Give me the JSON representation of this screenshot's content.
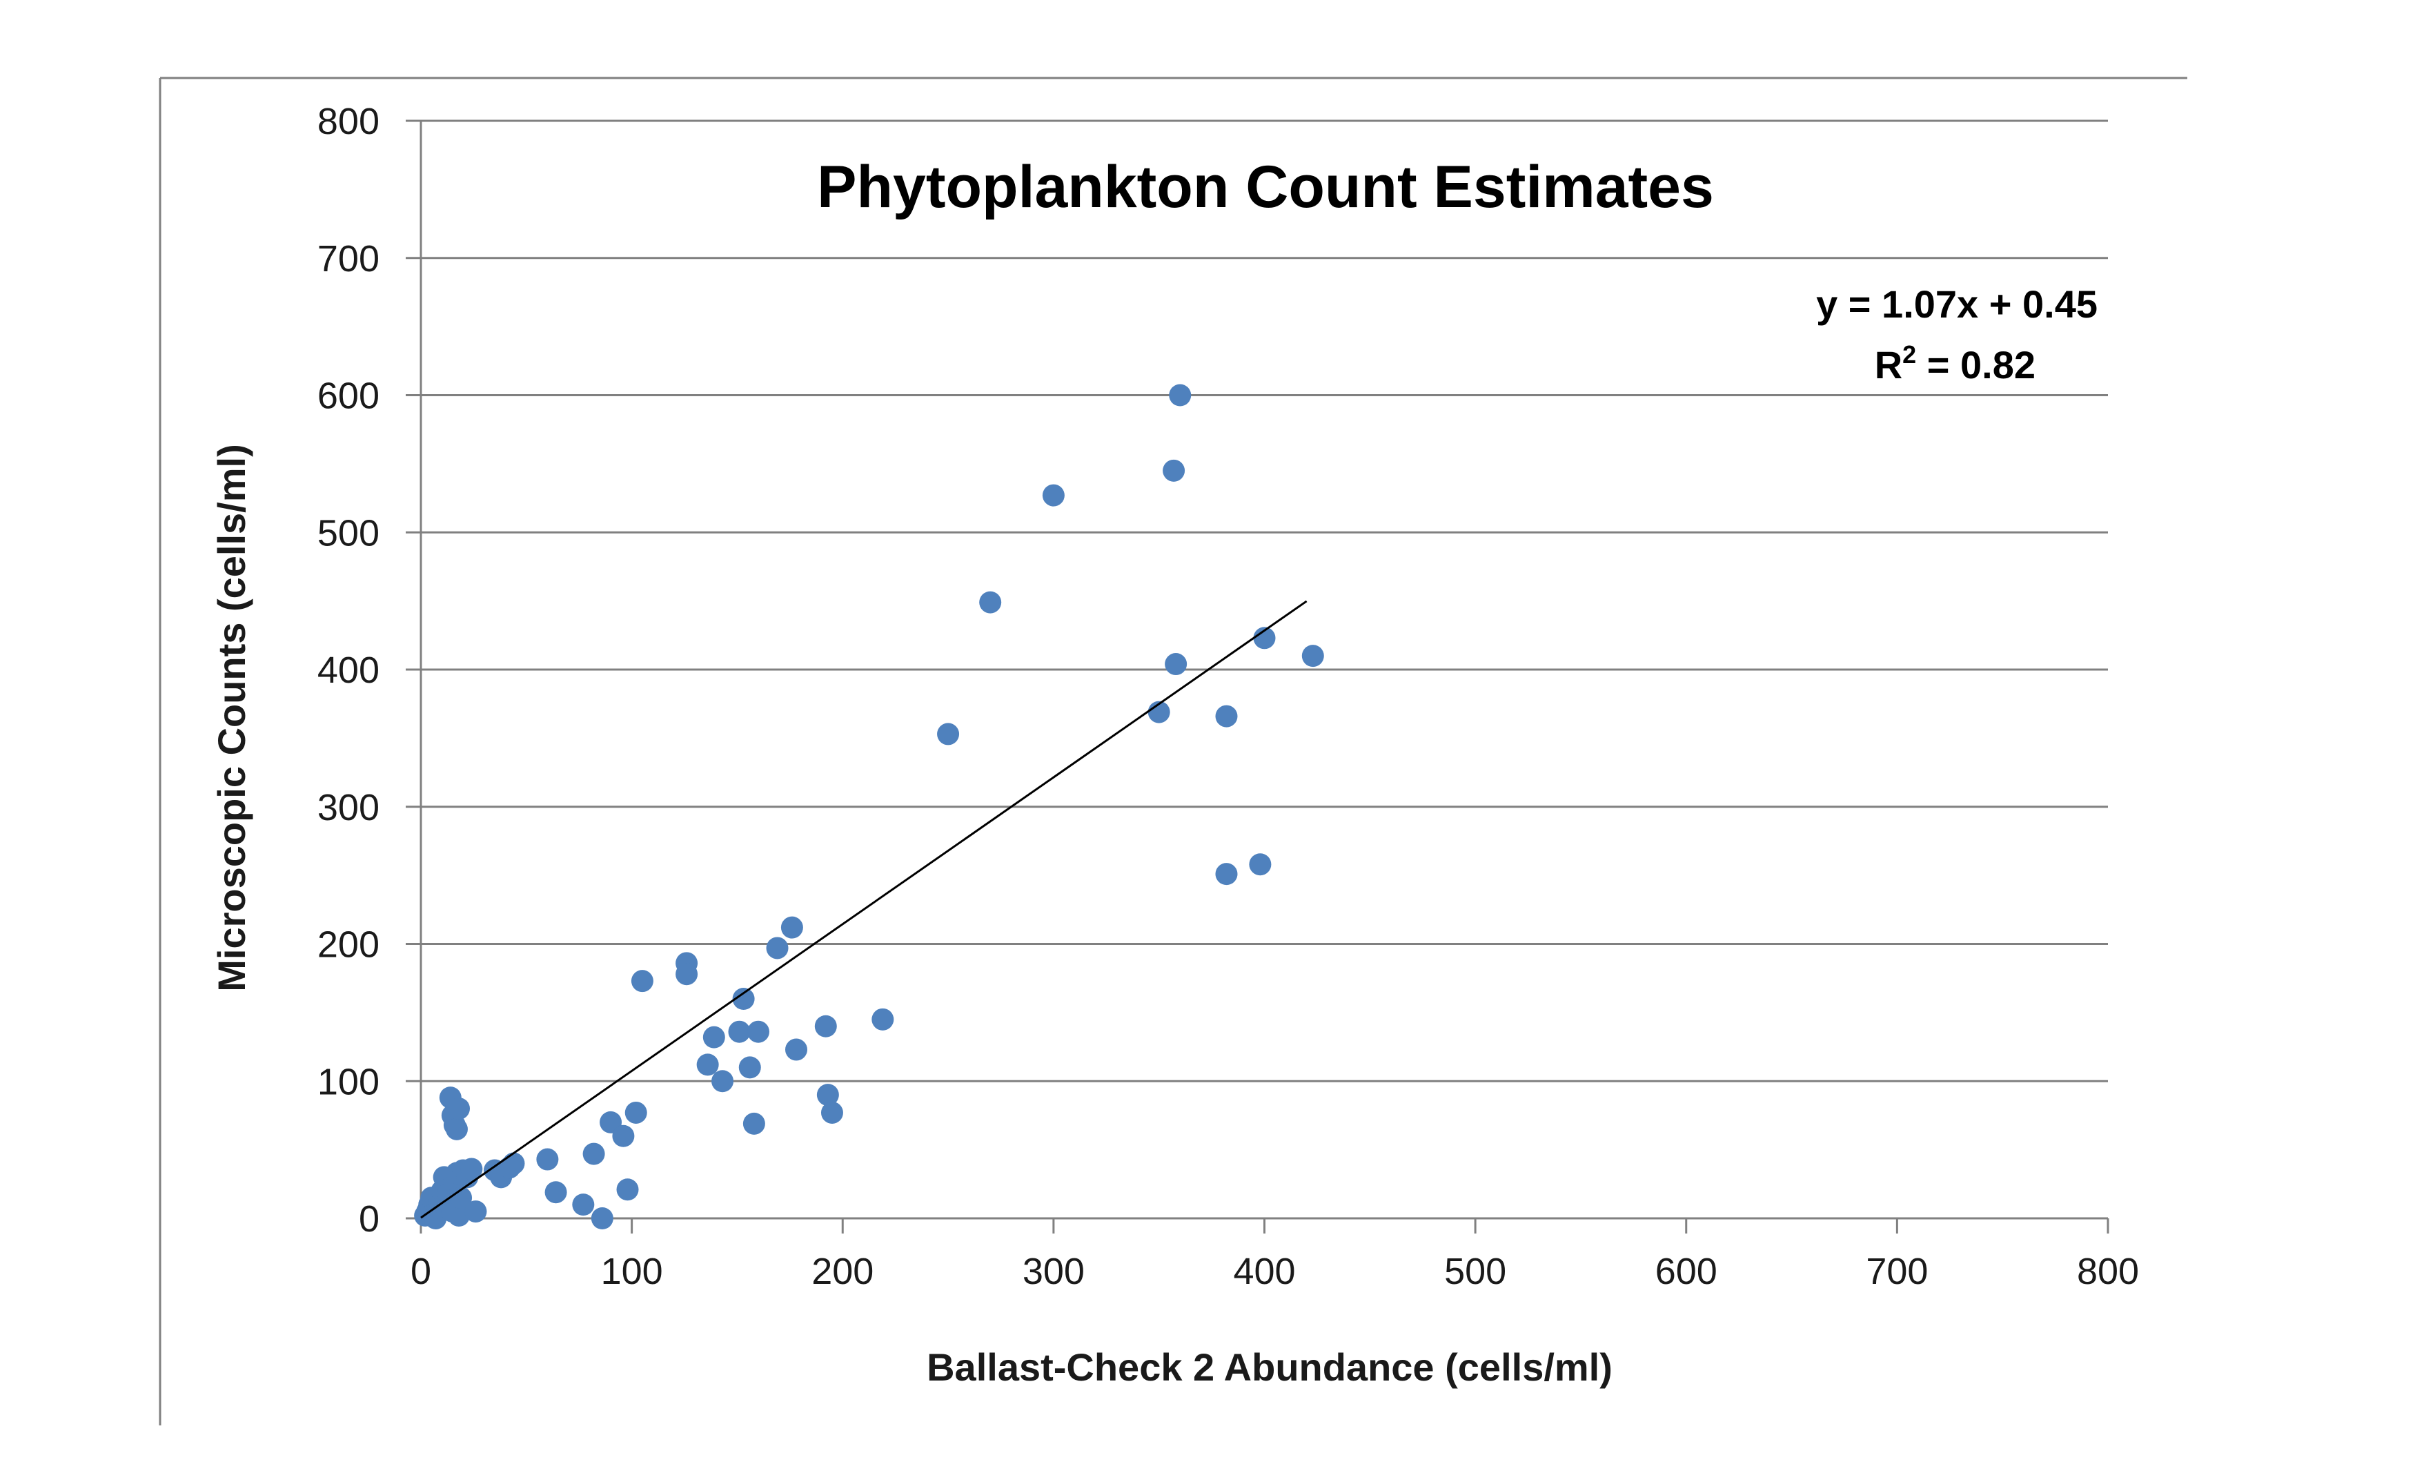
{
  "chart_data": {
    "type": "scatter",
    "title": "Phytoplankton Count Estimates",
    "xlabel": "Ballast-Check 2 Abundance (cells/ml)",
    "ylabel": "Microscopic Counts (cells/ml)",
    "xlim": [
      0,
      800
    ],
    "ylim": [
      0,
      800
    ],
    "xticks": [
      "0",
      "100",
      "200",
      "300",
      "400",
      "500",
      "600",
      "700",
      "800"
    ],
    "yticks": [
      "0",
      "100",
      "200",
      "300",
      "400",
      "500",
      "600",
      "700",
      "800"
    ],
    "grid": "horizontal",
    "legend": "none",
    "marker_color": "#4f81bd",
    "trendline": {
      "equation": "y = 1.07x + 0.45",
      "r_squared_prefix": "R",
      "r_squared_exponent": "2",
      "r_squared_value": " = 0.82",
      "slope": 1.07,
      "intercept": 0.45,
      "x_range": [
        0,
        420
      ]
    },
    "series": [
      {
        "points": [
          [
            2,
            2
          ],
          [
            3,
            5
          ],
          [
            4,
            10
          ],
          [
            5,
            15
          ],
          [
            6,
            3
          ],
          [
            7,
            0
          ],
          [
            8,
            8
          ],
          [
            9,
            12
          ],
          [
            10,
            20
          ],
          [
            11,
            30
          ],
          [
            12,
            25
          ],
          [
            13,
            18
          ],
          [
            14,
            10
          ],
          [
            15,
            5
          ],
          [
            16,
            28
          ],
          [
            17,
            33
          ],
          [
            18,
            2
          ],
          [
            19,
            15
          ],
          [
            20,
            35
          ],
          [
            22,
            30
          ],
          [
            24,
            36
          ],
          [
            26,
            5
          ],
          [
            14,
            88
          ],
          [
            15,
            75
          ],
          [
            16,
            68
          ],
          [
            17,
            65
          ],
          [
            18,
            80
          ],
          [
            35,
            35
          ],
          [
            38,
            30
          ],
          [
            42,
            37
          ],
          [
            44,
            40
          ],
          [
            60,
            43
          ],
          [
            64,
            19
          ],
          [
            77,
            10
          ],
          [
            82,
            47
          ],
          [
            86,
            0
          ],
          [
            90,
            70
          ],
          [
            96,
            60
          ],
          [
            98,
            21
          ],
          [
            102,
            77
          ],
          [
            105,
            173
          ],
          [
            126,
            186
          ],
          [
            126,
            178
          ],
          [
            136,
            112
          ],
          [
            139,
            132
          ],
          [
            143,
            100
          ],
          [
            151,
            136
          ],
          [
            153,
            160
          ],
          [
            156,
            110
          ],
          [
            158,
            69
          ],
          [
            160,
            136
          ],
          [
            169,
            197
          ],
          [
            176,
            212
          ],
          [
            178,
            123
          ],
          [
            192,
            140
          ],
          [
            193,
            90
          ],
          [
            195,
            77
          ],
          [
            219,
            145
          ],
          [
            250,
            353
          ],
          [
            270,
            449
          ],
          [
            300,
            527
          ],
          [
            350,
            369
          ],
          [
            357,
            545
          ],
          [
            358,
            404
          ],
          [
            360,
            600
          ],
          [
            382,
            251
          ],
          [
            382,
            366
          ],
          [
            398,
            258
          ],
          [
            400,
            423
          ],
          [
            423,
            410
          ]
        ]
      }
    ]
  }
}
